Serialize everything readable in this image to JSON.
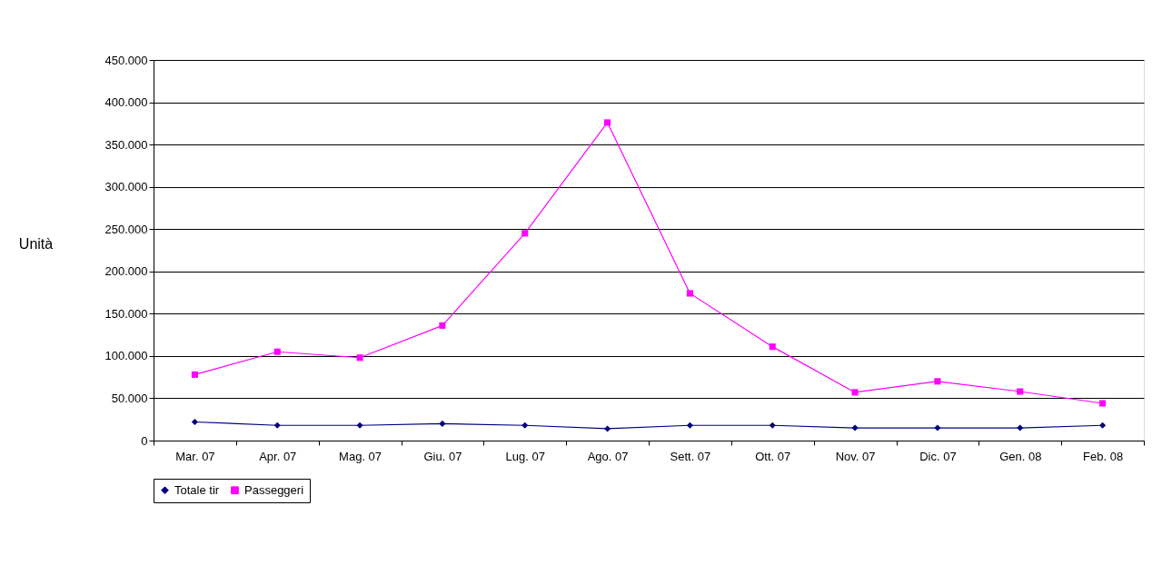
{
  "chart_data": {
    "type": "line",
    "ylabel": "Unità",
    "categories": [
      "Mar. 07",
      "Apr. 07",
      "Mag. 07",
      "Giu. 07",
      "Lug. 07",
      "Ago. 07",
      "Sett. 07",
      "Ott. 07",
      "Nov. 07",
      "Dic. 07",
      "Gen. 08",
      "Feb. 08"
    ],
    "series": [
      {
        "name": "Totale tir",
        "color": "#000080",
        "marker": "diamond",
        "values": [
          22000,
          18000,
          18000,
          20000,
          18000,
          14000,
          18000,
          18000,
          15000,
          15000,
          15000,
          18000
        ]
      },
      {
        "name": "Passeggeri",
        "color": "#ff00ff",
        "marker": "square",
        "values": [
          78000,
          105000,
          98000,
          136000,
          245000,
          376000,
          174000,
          111000,
          57000,
          70000,
          58000,
          44000
        ]
      }
    ],
    "ylim": [
      0,
      450000
    ],
    "yticks": [
      0,
      {
        "value": 50000,
        "label": "50.000"
      },
      {
        "value": 100000,
        "label": "100.000"
      },
      {
        "value": 150000,
        "label": "150.000"
      },
      {
        "value": 200000,
        "label": "200.000"
      },
      {
        "value": 250000,
        "label": "250.000"
      },
      {
        "value": 300000,
        "label": "300.000"
      },
      {
        "value": 350000,
        "label": "350.000"
      },
      {
        "value": 400000,
        "label": "400.000"
      },
      {
        "value": 450000,
        "label": "450.000"
      }
    ],
    "grid": "y",
    "legend": "bottom",
    "line_style": "solid"
  }
}
